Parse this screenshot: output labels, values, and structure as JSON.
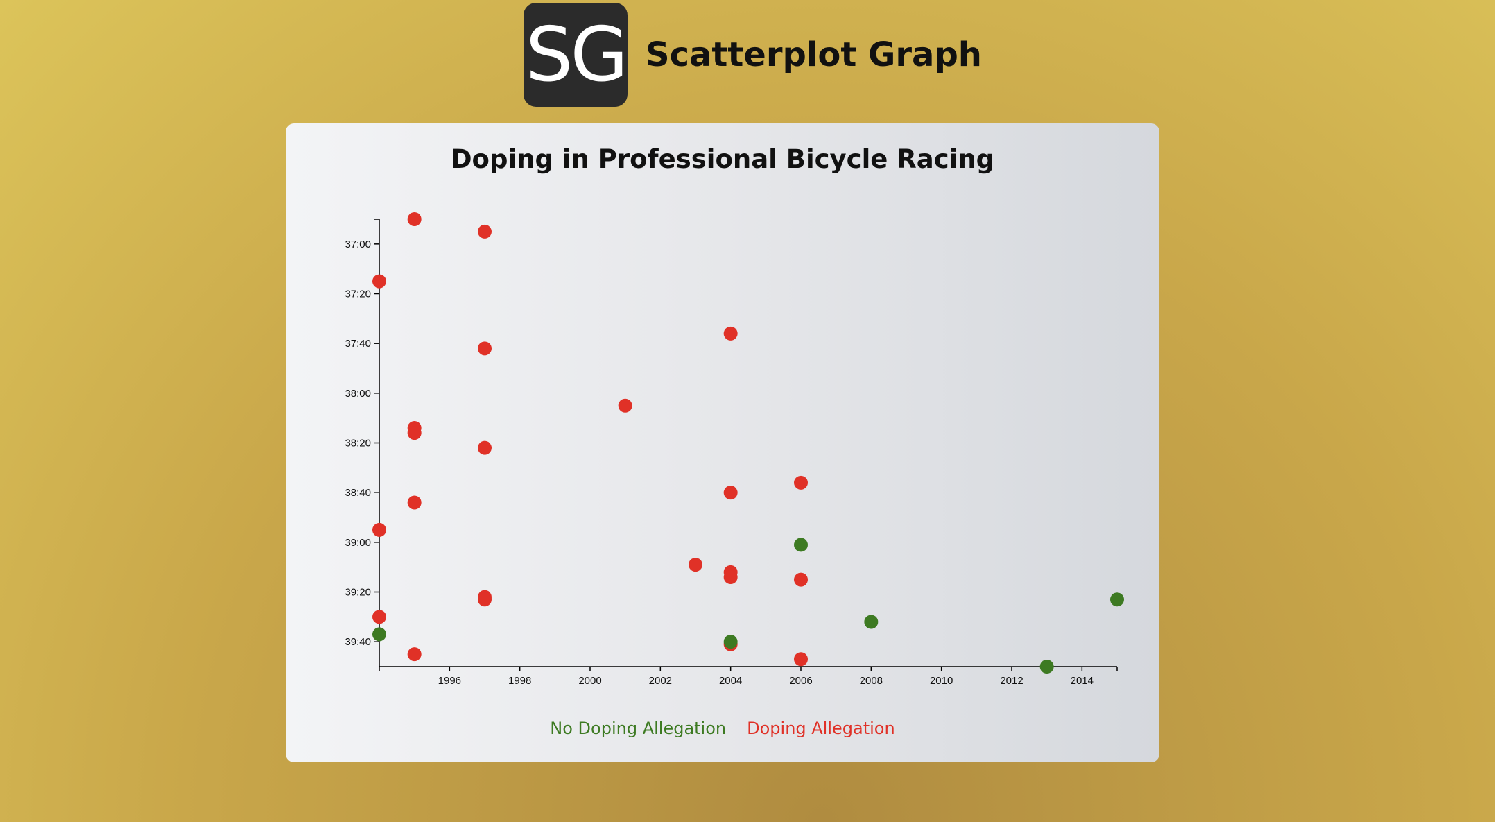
{
  "header": {
    "logo_text": "SG",
    "title": "Scatterplot Graph"
  },
  "colors": {
    "no_doping": "#3d7a22",
    "doping": "#e03127"
  },
  "legend": {
    "no_doping_label": "No Doping Allegation",
    "doping_label": "Doping Allegation"
  },
  "chart_data": {
    "type": "scatter",
    "title": "Doping in Professional Bicycle Racing",
    "xlabel": "",
    "ylabel": "",
    "xlim": [
      1994,
      2015
    ],
    "ylim_seconds": [
      2210,
      2390
    ],
    "x_ticks": [
      1996,
      1998,
      2000,
      2002,
      2004,
      2006,
      2008,
      2010,
      2012,
      2014
    ],
    "y_ticks": [
      "37:00",
      "37:20",
      "37:40",
      "38:00",
      "38:20",
      "38:40",
      "39:00",
      "39:20",
      "39:40"
    ],
    "y_tick_seconds": [
      2220,
      2240,
      2260,
      2280,
      2300,
      2320,
      2340,
      2360,
      2380
    ],
    "y_reversed": true,
    "grid": false,
    "legend_position": "bottom-center",
    "series": [
      {
        "name": "Doping Allegation",
        "key": "doping",
        "points": [
          {
            "x": 1995,
            "y": "36:50"
          },
          {
            "x": 1997,
            "y": "36:55"
          },
          {
            "x": 1994,
            "y": "37:15"
          },
          {
            "x": 2004,
            "y": "37:36"
          },
          {
            "x": 1997,
            "y": "37:42"
          },
          {
            "x": 2001,
            "y": "38:05"
          },
          {
            "x": 1995,
            "y": "38:14"
          },
          {
            "x": 1995,
            "y": "38:16"
          },
          {
            "x": 1997,
            "y": "38:22"
          },
          {
            "x": 2006,
            "y": "38:36"
          },
          {
            "x": 2004,
            "y": "38:40"
          },
          {
            "x": 1995,
            "y": "38:44"
          },
          {
            "x": 1994,
            "y": "38:55"
          },
          {
            "x": 2003,
            "y": "39:09"
          },
          {
            "x": 2004,
            "y": "39:12"
          },
          {
            "x": 2004,
            "y": "39:14"
          },
          {
            "x": 2006,
            "y": "39:15"
          },
          {
            "x": 1997,
            "y": "39:22"
          },
          {
            "x": 1997,
            "y": "39:23"
          },
          {
            "x": 1994,
            "y": "39:30"
          },
          {
            "x": 2004,
            "y": "39:41"
          },
          {
            "x": 1995,
            "y": "39:45"
          },
          {
            "x": 2006,
            "y": "39:47"
          }
        ]
      },
      {
        "name": "No Doping Allegation",
        "key": "no_doping",
        "points": [
          {
            "x": 2006,
            "y": "39:01"
          },
          {
            "x": 2015,
            "y": "39:23"
          },
          {
            "x": 2008,
            "y": "39:32"
          },
          {
            "x": 1994,
            "y": "39:37"
          },
          {
            "x": 2004,
            "y": "39:40"
          },
          {
            "x": 2013,
            "y": "39:50"
          }
        ]
      }
    ]
  }
}
